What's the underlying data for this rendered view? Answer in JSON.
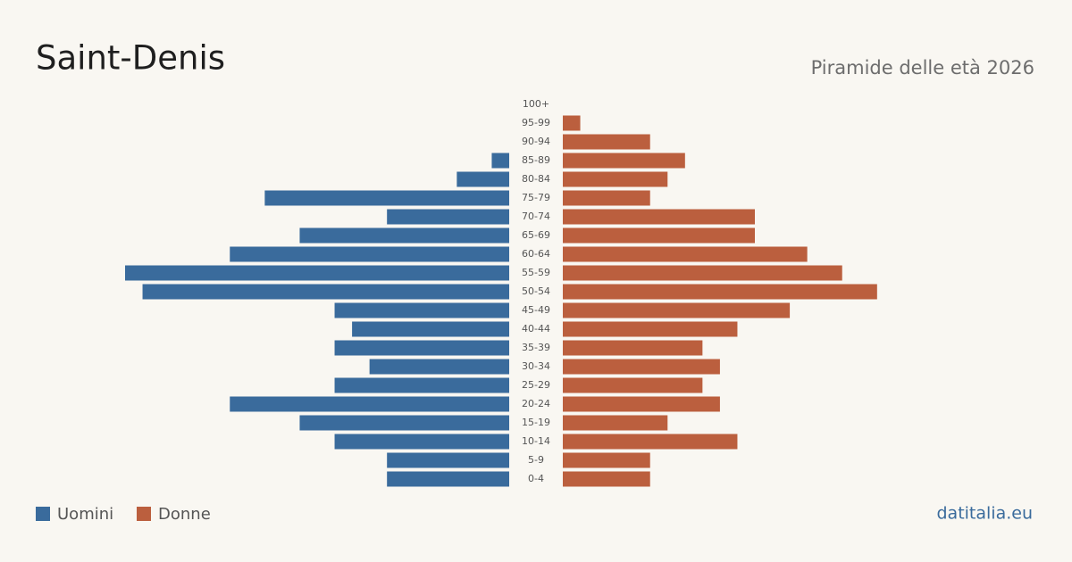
{
  "chart_data": {
    "type": "pyramid",
    "title": "Saint-Denis",
    "subtitle": "Piramide delle età 2026",
    "categories": [
      "100+",
      "95-99",
      "90-94",
      "85-89",
      "80-84",
      "75-79",
      "70-74",
      "65-69",
      "60-64",
      "55-59",
      "50-54",
      "45-49",
      "40-44",
      "35-39",
      "30-34",
      "25-29",
      "20-24",
      "15-19",
      "10-14",
      "5-9",
      "0-4"
    ],
    "series": [
      {
        "name": "Uomini",
        "color": "#3a6b9c",
        "values": [
          0,
          0,
          0,
          1,
          3,
          14,
          7,
          12,
          16,
          22,
          21,
          10,
          9,
          10,
          8,
          10,
          16,
          12,
          10,
          7,
          7
        ]
      },
      {
        "name": "Donne",
        "color": "#bb5f3e",
        "values": [
          0,
          1,
          5,
          7,
          6,
          5,
          11,
          11,
          14,
          16,
          18,
          13,
          10,
          8,
          9,
          8,
          9,
          6,
          10,
          5,
          5
        ]
      }
    ],
    "source": "datitalia.eu"
  }
}
